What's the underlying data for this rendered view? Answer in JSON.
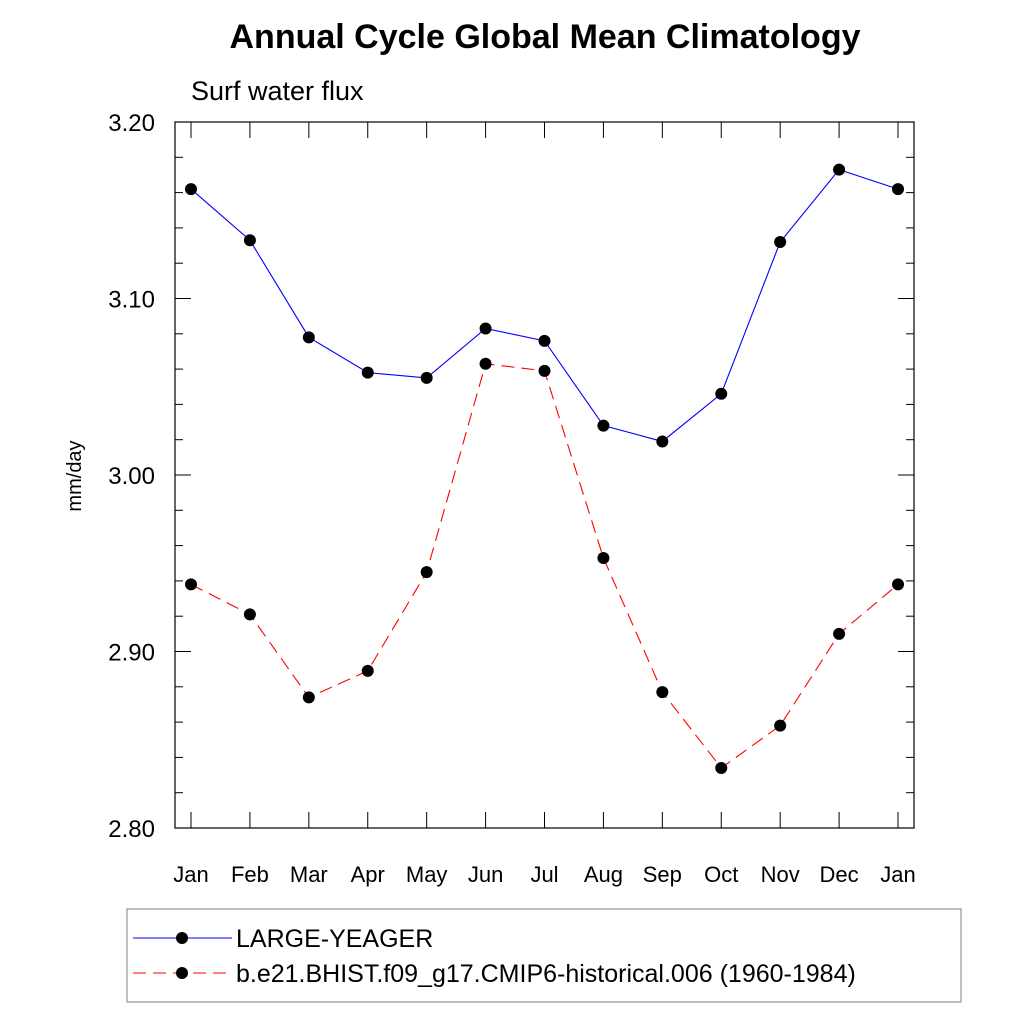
{
  "chart_data": {
    "type": "line",
    "title": "Annual Cycle Global Mean Climatology",
    "subtitle": "Surf water flux",
    "ylabel": "mm/day",
    "xlabel": "",
    "categories": [
      "Jan",
      "Feb",
      "Mar",
      "Apr",
      "May",
      "Jun",
      "Jul",
      "Aug",
      "Sep",
      "Oct",
      "Nov",
      "Dec",
      "Jan"
    ],
    "ylim": [
      2.8,
      3.2
    ],
    "yticks": [
      2.8,
      2.9,
      3.0,
      3.1,
      3.2
    ],
    "ytick_labels": [
      "2.80",
      "2.90",
      "3.00",
      "3.10",
      "3.20"
    ],
    "grid": false,
    "legend_position": "bottom",
    "series": [
      {
        "name": "LARGE-YEAGER",
        "color": "#0000ff",
        "line_style": "solid",
        "marker": "filled-circle",
        "values": [
          3.162,
          3.133,
          3.078,
          3.058,
          3.055,
          3.083,
          3.076,
          3.028,
          3.019,
          3.046,
          3.132,
          3.173,
          3.162
        ]
      },
      {
        "name": "b.e21.BHIST.f09_g17.CMIP6-historical.006 (1960-1984)",
        "color": "#ff0000",
        "line_style": "dashed",
        "marker": "filled-circle",
        "values": [
          2.938,
          2.921,
          2.874,
          2.889,
          2.945,
          3.063,
          3.059,
          2.953,
          2.877,
          2.834,
          2.858,
          2.91,
          2.938
        ]
      }
    ]
  }
}
